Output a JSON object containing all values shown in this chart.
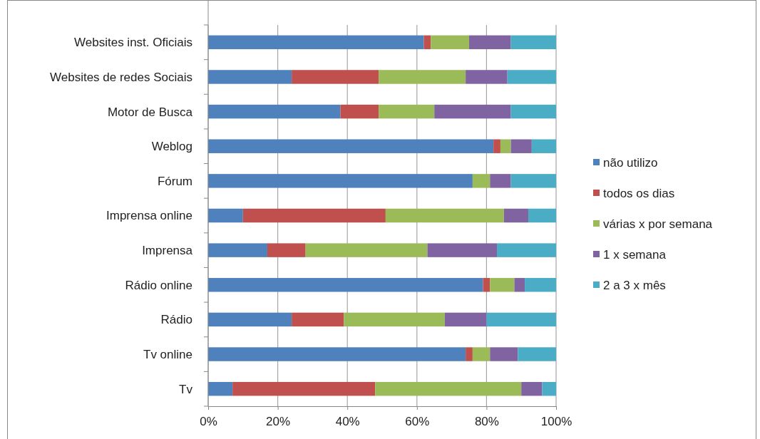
{
  "chart_data": {
    "type": "bar",
    "orientation": "horizontal",
    "stacked": true,
    "categories": [
      "Websites inst. Oficiais",
      "Websites de redes Sociais",
      "Motor de Busca",
      "Weblog",
      "Fórum",
      "Imprensa online",
      "Imprensa",
      "Rádio online",
      "Rádio",
      "Tv online",
      "Tv"
    ],
    "series": [
      {
        "name": "não utilizo",
        "color": "#4f81bd",
        "values": [
          62,
          24,
          38,
          82,
          76,
          10,
          17,
          79,
          24,
          74,
          7
        ]
      },
      {
        "name": "todos os dias",
        "color": "#c0504d",
        "values": [
          2,
          25,
          11,
          2,
          0,
          41,
          11,
          2,
          15,
          2,
          41
        ]
      },
      {
        "name": "várias x por semana",
        "color": "#9bbb59",
        "values": [
          11,
          25,
          16,
          3,
          5,
          34,
          35,
          7,
          29,
          5,
          42
        ]
      },
      {
        "name": "1 x semana",
        "color": "#8064a2",
        "values": [
          12,
          12,
          22,
          6,
          6,
          7,
          20,
          3,
          12,
          8,
          6
        ]
      },
      {
        "name": "2 a 3 x mês",
        "color": "#4bacc6",
        "values": [
          13,
          14,
          13,
          7,
          13,
          8,
          17,
          9,
          20,
          11,
          4
        ]
      }
    ],
    "xlim": [
      0,
      100
    ],
    "xticks": [
      {
        "value": 0,
        "label": "0%"
      },
      {
        "value": 20,
        "label": "20%"
      },
      {
        "value": 40,
        "label": "40%"
      },
      {
        "value": 60,
        "label": "60%"
      },
      {
        "value": 80,
        "label": "80%"
      },
      {
        "value": 100,
        "label": "100%"
      }
    ],
    "grid": "x",
    "legend": "right"
  }
}
